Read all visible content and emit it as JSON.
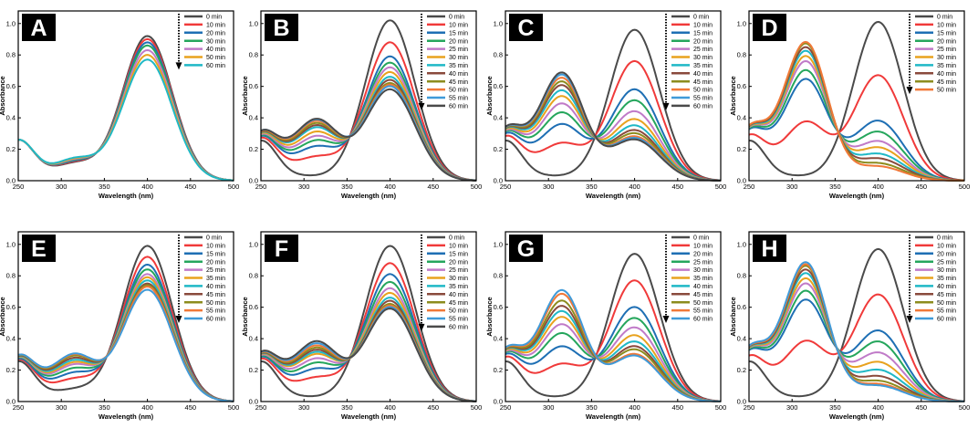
{
  "figure": {
    "xlabel": "Wavelength (nm)",
    "ylabel": "Absorbance",
    "xlim": [
      250,
      500
    ],
    "ylim": [
      0,
      1.08
    ],
    "xticks": [
      250,
      300,
      350,
      400,
      450,
      500
    ],
    "yticks": [
      0.0,
      0.2,
      0.4,
      0.6,
      0.8,
      1.0
    ]
  },
  "colors": [
    "#4a4a4a",
    "#f03a3a",
    "#1e6fb4",
    "#25a65c",
    "#c07ac8",
    "#e8a21e",
    "#1fb8c6",
    "#8a4a3c",
    "#8c8c1e",
    "#f07838",
    "#3f9ad8"
  ],
  "chart_data": [
    {
      "panel": "A",
      "type": "line",
      "xlabel": "Wavelength (nm)",
      "ylabel": "Absorbance",
      "xlim": [
        250,
        500
      ],
      "ylim": [
        0,
        1.08
      ],
      "legend": [
        "0 min",
        "10 min",
        "20 min",
        "30 min",
        "40 min",
        "50 min",
        "60 min"
      ],
      "series_params": [
        {
          "name": "0 min",
          "s0": 0.0,
          "base": 0.005,
          "hump": 0.08,
          "peak": 0.92
        },
        {
          "name": "10 min",
          "s0": 0.01,
          "base": 0.005,
          "hump": 0.085,
          "peak": 0.9
        },
        {
          "name": "20 min",
          "s0": 0.02,
          "base": 0.005,
          "hump": 0.09,
          "peak": 0.88
        },
        {
          "name": "30 min",
          "s0": 0.03,
          "base": 0.005,
          "hump": 0.095,
          "peak": 0.86
        },
        {
          "name": "40 min",
          "s0": 0.04,
          "base": 0.005,
          "hump": 0.1,
          "peak": 0.83
        },
        {
          "name": "50 min",
          "s0": 0.05,
          "base": 0.005,
          "hump": 0.105,
          "peak": 0.8
        },
        {
          "name": "60 min",
          "s0": 0.06,
          "base": 0.005,
          "hump": 0.11,
          "peak": 0.77
        }
      ]
    },
    {
      "panel": "B",
      "type": "line",
      "xlabel": "Wavelength (nm)",
      "ylabel": "Absorbance",
      "xlim": [
        250,
        500
      ],
      "ylim": [
        0,
        1.08
      ],
      "legend": [
        "0 min",
        "10 min",
        "15 min",
        "20 min",
        "25 min",
        "30 min",
        "35 min",
        "40 min",
        "45 min",
        "50 min",
        "55 min",
        "60 min"
      ],
      "series_params": [
        {
          "name": "0 min",
          "s0": 0.0,
          "base": 0.0,
          "hump": 0.0,
          "peak": 1.02
        },
        {
          "name": "10 min",
          "s0": 0.05,
          "base": 0.03,
          "hump": 0.1,
          "peak": 0.88
        },
        {
          "name": "15 min",
          "s0": 0.08,
          "base": 0.05,
          "hump": 0.15,
          "peak": 0.79
        },
        {
          "name": "20 min",
          "s0": 0.11,
          "base": 0.06,
          "hump": 0.18,
          "peak": 0.75
        },
        {
          "name": "25 min",
          "s0": 0.13,
          "base": 0.07,
          "hump": 0.2,
          "peak": 0.72
        },
        {
          "name": "30 min",
          "s0": 0.15,
          "base": 0.08,
          "hump": 0.22,
          "peak": 0.69
        },
        {
          "name": "35 min",
          "s0": 0.17,
          "base": 0.09,
          "hump": 0.24,
          "peak": 0.66
        },
        {
          "name": "40 min",
          "s0": 0.18,
          "base": 0.095,
          "hump": 0.25,
          "peak": 0.64
        },
        {
          "name": "45 min",
          "s0": 0.19,
          "base": 0.1,
          "hump": 0.26,
          "peak": 0.62
        },
        {
          "name": "50 min",
          "s0": 0.2,
          "base": 0.105,
          "hump": 0.27,
          "peak": 0.61
        },
        {
          "name": "55 min",
          "s0": 0.21,
          "base": 0.11,
          "hump": 0.275,
          "peak": 0.6
        },
        {
          "name": "60 min",
          "s0": 0.22,
          "base": 0.11,
          "hump": 0.28,
          "peak": 0.58
        }
      ]
    },
    {
      "panel": "C",
      "type": "line",
      "xlabel": "Wavelength (nm)",
      "ylabel": "Absorbance",
      "xlim": [
        250,
        500
      ],
      "ylim": [
        0,
        1.08
      ],
      "legend": [
        "0 min",
        "10 min",
        "15 min",
        "20 min",
        "25 min",
        "30 min",
        "35 min",
        "40 min",
        "45 min",
        "50 min",
        "55 min",
        "60 min"
      ],
      "series_params": [
        {
          "name": "0 min",
          "s0": 0.0,
          "base": 0.0,
          "hump": 0.0,
          "peak": 0.96
        },
        {
          "name": "10 min",
          "s0": 0.1,
          "base": 0.05,
          "hump": 0.17,
          "peak": 0.76
        },
        {
          "name": "15 min",
          "s0": 0.16,
          "base": 0.08,
          "hump": 0.27,
          "peak": 0.58
        },
        {
          "name": "20 min",
          "s0": 0.19,
          "base": 0.1,
          "hump": 0.33,
          "peak": 0.51
        },
        {
          "name": "25 min",
          "s0": 0.22,
          "base": 0.11,
          "hump": 0.38,
          "peak": 0.44
        },
        {
          "name": "30 min",
          "s0": 0.24,
          "base": 0.12,
          "hump": 0.42,
          "peak": 0.39
        },
        {
          "name": "35 min",
          "s0": 0.26,
          "base": 0.13,
          "hump": 0.45,
          "peak": 0.35
        },
        {
          "name": "40 min",
          "s0": 0.27,
          "base": 0.135,
          "hump": 0.48,
          "peak": 0.32
        },
        {
          "name": "45 min",
          "s0": 0.28,
          "base": 0.14,
          "hump": 0.5,
          "peak": 0.3
        },
        {
          "name": "50 min",
          "s0": 0.29,
          "base": 0.145,
          "hump": 0.52,
          "peak": 0.28
        },
        {
          "name": "55 min",
          "s0": 0.29,
          "base": 0.145,
          "hump": 0.54,
          "peak": 0.27
        },
        {
          "name": "60 min",
          "s0": 0.3,
          "base": 0.15,
          "hump": 0.55,
          "peak": 0.26
        }
      ]
    },
    {
      "panel": "D",
      "type": "line",
      "xlabel": "Wavelength (nm)",
      "ylabel": "Absorbance",
      "xlim": [
        250,
        500
      ],
      "ylim": [
        0,
        1.08
      ],
      "legend": [
        "0 min",
        "10 min",
        "15 min",
        "20 min",
        "25 min",
        "30 min",
        "35 min",
        "40 min",
        "45 min",
        "50 min"
      ],
      "series_params": [
        {
          "name": "0 min",
          "s0": 0.0,
          "base": 0.0,
          "hump": 0.0,
          "peak": 1.01
        },
        {
          "name": "10 min",
          "s0": 0.06,
          "base": 0.06,
          "hump": 0.3,
          "peak": 0.67
        },
        {
          "name": "15 min",
          "s0": 0.14,
          "base": 0.12,
          "hump": 0.53,
          "peak": 0.38
        },
        {
          "name": "20 min",
          "s0": 0.16,
          "base": 0.13,
          "hump": 0.58,
          "peak": 0.31
        },
        {
          "name": "25 min",
          "s0": 0.17,
          "base": 0.14,
          "hump": 0.63,
          "peak": 0.25
        },
        {
          "name": "30 min",
          "s0": 0.18,
          "base": 0.145,
          "hump": 0.66,
          "peak": 0.21
        },
        {
          "name": "35 min",
          "s0": 0.19,
          "base": 0.15,
          "hump": 0.69,
          "peak": 0.17
        },
        {
          "name": "40 min",
          "s0": 0.19,
          "base": 0.155,
          "hump": 0.71,
          "peak": 0.14
        },
        {
          "name": "45 min",
          "s0": 0.2,
          "base": 0.16,
          "hump": 0.73,
          "peak": 0.11
        },
        {
          "name": "50 min",
          "s0": 0.2,
          "base": 0.16,
          "hump": 0.74,
          "peak": 0.09
        }
      ]
    },
    {
      "panel": "E",
      "type": "line",
      "xlabel": "Wavelength (nm)",
      "ylabel": "Absorbance",
      "xlim": [
        250,
        500
      ],
      "ylim": [
        0,
        1.08
      ],
      "legend": [
        "0 min",
        "10 min",
        "15 min",
        "20 min",
        "25 min",
        "35 min",
        "40 min",
        "45 min",
        "50 min",
        "55 min",
        "60 min"
      ],
      "series_params": [
        {
          "name": "0 min",
          "s0": 0.0,
          "base": 0.0,
          "hump": 0.05,
          "peak": 0.99
        },
        {
          "name": "10 min",
          "s0": 0.02,
          "base": 0.02,
          "hump": 0.1,
          "peak": 0.92
        },
        {
          "name": "15 min",
          "s0": 0.04,
          "base": 0.03,
          "hump": 0.13,
          "peak": 0.87
        },
        {
          "name": "20 min",
          "s0": 0.05,
          "base": 0.04,
          "hump": 0.15,
          "peak": 0.84
        },
        {
          "name": "25 min",
          "s0": 0.06,
          "base": 0.045,
          "hump": 0.17,
          "peak": 0.81
        },
        {
          "name": "35 min",
          "s0": 0.07,
          "base": 0.05,
          "hump": 0.18,
          "peak": 0.79
        },
        {
          "name": "40 min",
          "s0": 0.08,
          "base": 0.055,
          "hump": 0.19,
          "peak": 0.77
        },
        {
          "name": "45 min",
          "s0": 0.09,
          "base": 0.06,
          "hump": 0.2,
          "peak": 0.75
        },
        {
          "name": "50 min",
          "s0": 0.1,
          "base": 0.065,
          "hump": 0.21,
          "peak": 0.74
        },
        {
          "name": "55 min",
          "s0": 0.1,
          "base": 0.07,
          "hump": 0.215,
          "peak": 0.73
        },
        {
          "name": "60 min",
          "s0": 0.11,
          "base": 0.07,
          "hump": 0.22,
          "peak": 0.71
        }
      ]
    },
    {
      "panel": "F",
      "type": "line",
      "xlabel": "Wavelength (nm)",
      "ylabel": "Absorbance",
      "xlim": [
        250,
        500
      ],
      "ylim": [
        0,
        1.08
      ],
      "legend": [
        "0 min",
        "10 min",
        "15 min",
        "20 min",
        "25 min",
        "30 min",
        "35 min",
        "40 min",
        "45 min",
        "50 min",
        "55 min",
        "60 min"
      ],
      "series_params": [
        {
          "name": "0 min",
          "s0": 0.0,
          "base": 0.0,
          "hump": 0.0,
          "peak": 0.99
        },
        {
          "name": "10 min",
          "s0": 0.05,
          "base": 0.03,
          "hump": 0.1,
          "peak": 0.88
        },
        {
          "name": "15 min",
          "s0": 0.08,
          "base": 0.05,
          "hump": 0.14,
          "peak": 0.81
        },
        {
          "name": "20 min",
          "s0": 0.11,
          "base": 0.06,
          "hump": 0.17,
          "peak": 0.76
        },
        {
          "name": "25 min",
          "s0": 0.13,
          "base": 0.07,
          "hump": 0.19,
          "peak": 0.72
        },
        {
          "name": "30 min",
          "s0": 0.15,
          "base": 0.08,
          "hump": 0.21,
          "peak": 0.69
        },
        {
          "name": "35 min",
          "s0": 0.16,
          "base": 0.085,
          "hump": 0.22,
          "peak": 0.66
        },
        {
          "name": "40 min",
          "s0": 0.17,
          "base": 0.09,
          "hump": 0.23,
          "peak": 0.64
        },
        {
          "name": "45 min",
          "s0": 0.18,
          "base": 0.095,
          "hump": 0.24,
          "peak": 0.62
        },
        {
          "name": "50 min",
          "s0": 0.19,
          "base": 0.1,
          "hump": 0.25,
          "peak": 0.61
        },
        {
          "name": "55 min",
          "s0": 0.2,
          "base": 0.105,
          "hump": 0.26,
          "peak": 0.6
        },
        {
          "name": "60 min",
          "s0": 0.21,
          "base": 0.11,
          "hump": 0.27,
          "peak": 0.59
        }
      ]
    },
    {
      "panel": "G",
      "type": "line",
      "xlabel": "Wavelength (nm)",
      "ylabel": "Absorbance",
      "xlim": [
        250,
        500
      ],
      "ylim": [
        0,
        1.08
      ],
      "legend": [
        "0 min",
        "10 min",
        "20 min",
        "25 min",
        "30 min",
        "35 min",
        "40 min",
        "45 min",
        "50 min",
        "55 min",
        "60 min"
      ],
      "series_params": [
        {
          "name": "0 min",
          "s0": 0.0,
          "base": 0.0,
          "hump": 0.0,
          "peak": 0.94
        },
        {
          "name": "10 min",
          "s0": 0.1,
          "base": 0.05,
          "hump": 0.17,
          "peak": 0.77
        },
        {
          "name": "20 min",
          "s0": 0.15,
          "base": 0.08,
          "hump": 0.26,
          "peak": 0.6
        },
        {
          "name": "25 min",
          "s0": 0.18,
          "base": 0.1,
          "hump": 0.33,
          "peak": 0.53
        },
        {
          "name": "30 min",
          "s0": 0.21,
          "base": 0.11,
          "hump": 0.38,
          "peak": 0.47
        },
        {
          "name": "35 min",
          "s0": 0.23,
          "base": 0.12,
          "hump": 0.42,
          "peak": 0.42
        },
        {
          "name": "40 min",
          "s0": 0.25,
          "base": 0.13,
          "hump": 0.45,
          "peak": 0.38
        },
        {
          "name": "45 min",
          "s0": 0.26,
          "base": 0.135,
          "hump": 0.48,
          "peak": 0.35
        },
        {
          "name": "50 min",
          "s0": 0.27,
          "base": 0.14,
          "hump": 0.51,
          "peak": 0.33
        },
        {
          "name": "55 min",
          "s0": 0.28,
          "base": 0.145,
          "hump": 0.55,
          "peak": 0.3
        },
        {
          "name": "60 min",
          "s0": 0.29,
          "base": 0.15,
          "hump": 0.57,
          "peak": 0.29
        }
      ]
    },
    {
      "panel": "H",
      "type": "line",
      "xlabel": "Wavelength (nm)",
      "ylabel": "Absorbance",
      "xlim": [
        250,
        500
      ],
      "ylim": [
        0,
        1.08
      ],
      "legend": [
        "0 min",
        "10 min",
        "20 min",
        "25 min",
        "30 min",
        "35 min",
        "40 min",
        "45 min",
        "50 min",
        "55 min",
        "60 min"
      ],
      "series_params": [
        {
          "name": "0 min",
          "s0": 0.0,
          "base": 0.0,
          "hump": 0.0,
          "peak": 0.97
        },
        {
          "name": "10 min",
          "s0": 0.06,
          "base": 0.06,
          "hump": 0.31,
          "peak": 0.68
        },
        {
          "name": "20 min",
          "s0": 0.14,
          "base": 0.12,
          "hump": 0.53,
          "peak": 0.45
        },
        {
          "name": "25 min",
          "s0": 0.15,
          "base": 0.13,
          "hump": 0.58,
          "peak": 0.38
        },
        {
          "name": "30 min",
          "s0": 0.16,
          "base": 0.14,
          "hump": 0.62,
          "peak": 0.31
        },
        {
          "name": "35 min",
          "s0": 0.17,
          "base": 0.145,
          "hump": 0.65,
          "peak": 0.25
        },
        {
          "name": "40 min",
          "s0": 0.18,
          "base": 0.15,
          "hump": 0.68,
          "peak": 0.2
        },
        {
          "name": "45 min",
          "s0": 0.18,
          "base": 0.155,
          "hump": 0.7,
          "peak": 0.16
        },
        {
          "name": "50 min",
          "s0": 0.19,
          "base": 0.16,
          "hump": 0.72,
          "peak": 0.13
        },
        {
          "name": "55 min",
          "s0": 0.19,
          "base": 0.16,
          "hump": 0.73,
          "peak": 0.11
        },
        {
          "name": "60 min",
          "s0": 0.2,
          "base": 0.165,
          "hump": 0.74,
          "peak": 0.1
        }
      ]
    }
  ]
}
